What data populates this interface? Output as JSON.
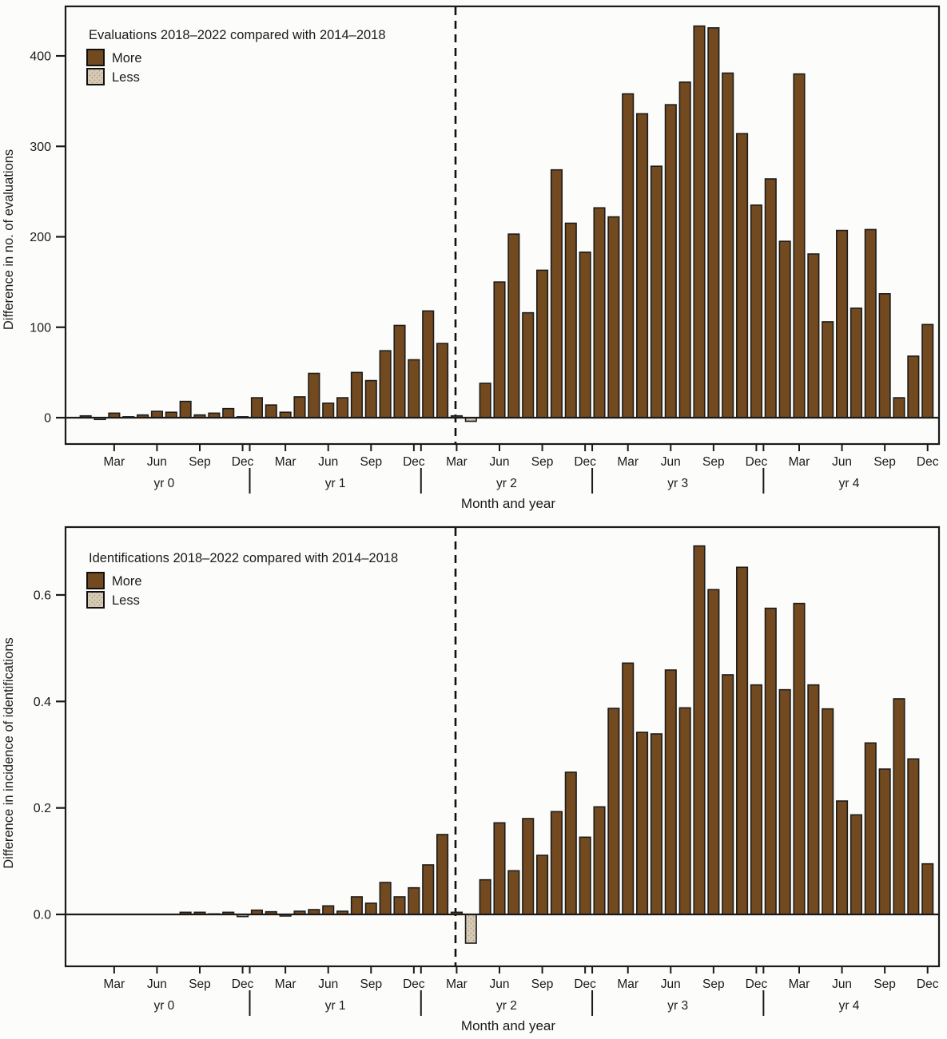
{
  "colors": {
    "more": "#734A20",
    "less": "#D5C9B4",
    "axis": "#1a1a1a",
    "background": "#fcfdfa"
  },
  "chart_data": [
    {
      "type": "bar",
      "title": "Evaluations 2018–2022 compared with 2014–2018",
      "legend": [
        "More",
        "Less"
      ],
      "legend_position": "top-left-inside",
      "xlabel": "Month and year",
      "ylabel": "Difference in no. of evaluations",
      "ylim": [
        -30,
        445
      ],
      "yticks": [
        0,
        100,
        200,
        300,
        400
      ],
      "ytick_labels": [
        "0",
        "100",
        "200",
        "300",
        "400"
      ],
      "x_month_tick_labels": [
        "Mar",
        "Jun",
        "Sep",
        "Dec"
      ],
      "year_labels": [
        "yr 0",
        "yr 1",
        "yr 2",
        "yr 3",
        "yr 4"
      ],
      "dashed_line_at": "Mar yr 2",
      "grid": false,
      "categories": [
        "Jan yr0",
        "Feb yr0",
        "Mar yr0",
        "Apr yr0",
        "May yr0",
        "Jun yr0",
        "Jul yr0",
        "Aug yr0",
        "Sep yr0",
        "Oct yr0",
        "Nov yr0",
        "Dec yr0",
        "Jan yr1",
        "Feb yr1",
        "Mar yr1",
        "Apr yr1",
        "May yr1",
        "Jun yr1",
        "Jul yr1",
        "Aug yr1",
        "Sep yr1",
        "Oct yr1",
        "Nov yr1",
        "Dec yr1",
        "Jan yr2",
        "Feb yr2",
        "Mar yr2",
        "Apr yr2",
        "May yr2",
        "Jun yr2",
        "Jul yr2",
        "Aug yr2",
        "Sep yr2",
        "Oct yr2",
        "Nov yr2",
        "Dec yr2",
        "Jan yr3",
        "Feb yr3",
        "Mar yr3",
        "Apr yr3",
        "May yr3",
        "Jun yr3",
        "Jul yr3",
        "Aug yr3",
        "Sep yr3",
        "Oct yr3",
        "Nov yr3",
        "Dec yr3",
        "Jan yr4",
        "Feb yr4",
        "Mar yr4",
        "Apr yr4",
        "May yr4",
        "Jun yr4",
        "Jul yr4",
        "Aug yr4",
        "Sep yr4",
        "Oct yr4",
        "Nov yr4",
        "Dec yr4"
      ],
      "values": [
        2,
        -2,
        5,
        1,
        3,
        7,
        6,
        18,
        3,
        5,
        10,
        1,
        22,
        14,
        6,
        23,
        49,
        16,
        22,
        50,
        41,
        74,
        102,
        64,
        118,
        82,
        2,
        -4,
        38,
        150,
        203,
        116,
        163,
        274,
        215,
        183,
        232,
        222,
        358,
        336,
        278,
        346,
        371,
        433,
        431,
        381,
        314,
        235,
        264,
        195,
        380,
        181,
        106,
        207,
        121,
        208,
        137,
        22,
        68,
        103
      ]
    },
    {
      "type": "bar",
      "title": "Identifications 2018–2022 compared with 2014–2018",
      "legend": [
        "More",
        "Less"
      ],
      "legend_position": "top-left-inside",
      "xlabel": "Month and year",
      "ylabel": "Difference in incidence of identifications",
      "ylim": [
        -0.09,
        0.74
      ],
      "yticks": [
        0.0,
        0.2,
        0.4,
        0.6
      ],
      "ytick_labels": [
        "0.0",
        "0.2",
        "0.4",
        "0.6"
      ],
      "x_month_tick_labels": [
        "Mar",
        "Jun",
        "Sep",
        "Dec"
      ],
      "year_labels": [
        "yr 0",
        "yr 1",
        "yr 2",
        "yr 3",
        "yr 4"
      ],
      "dashed_line_at": "Mar yr 2",
      "grid": false,
      "categories": [
        "Jan yr0",
        "Feb yr0",
        "Mar yr0",
        "Apr yr0",
        "May yr0",
        "Jun yr0",
        "Jul yr0",
        "Aug yr0",
        "Sep yr0",
        "Oct yr0",
        "Nov yr0",
        "Dec yr0",
        "Jan yr1",
        "Feb yr1",
        "Mar yr1",
        "Apr yr1",
        "May yr1",
        "Jun yr1",
        "Jul yr1",
        "Aug yr1",
        "Sep yr1",
        "Oct yr1",
        "Nov yr1",
        "Dec yr1",
        "Jan yr2",
        "Feb yr2",
        "Mar yr2",
        "Apr yr2",
        "May yr2",
        "Jun yr2",
        "Jul yr2",
        "Aug yr2",
        "Sep yr2",
        "Oct yr2",
        "Nov yr2",
        "Dec yr2",
        "Jan yr3",
        "Feb yr3",
        "Mar yr3",
        "Apr yr3",
        "May yr3",
        "Jun yr3",
        "Jul yr3",
        "Aug yr3",
        "Sep yr3",
        "Oct yr3",
        "Nov yr3",
        "Dec yr3",
        "Jan yr4",
        "Feb yr4",
        "Mar yr4",
        "Apr yr4",
        "May yr4",
        "Jun yr4",
        "Jul yr4",
        "Aug yr4",
        "Sep yr4",
        "Oct yr4",
        "Nov yr4",
        "Dec yr4"
      ],
      "values": [
        0,
        0,
        0,
        0,
        0,
        0,
        0,
        0.004,
        0.004,
        0.001,
        0.004,
        -0.004,
        0.008,
        0.005,
        -0.003,
        0.006,
        0.009,
        0.016,
        0.006,
        0.033,
        0.021,
        0.06,
        0.033,
        0.05,
        0.093,
        0.15,
        0.004,
        -0.054,
        0.065,
        0.172,
        0.082,
        0.18,
        0.111,
        0.193,
        0.267,
        0.145,
        0.202,
        0.387,
        0.472,
        0.342,
        0.339,
        0.459,
        0.388,
        0.692,
        0.61,
        0.45,
        0.652,
        0.431,
        0.575,
        0.422,
        0.584,
        0.431,
        0.386,
        0.213,
        0.187,
        0.322,
        0.273,
        0.405,
        0.292,
        0.095
      ]
    }
  ]
}
